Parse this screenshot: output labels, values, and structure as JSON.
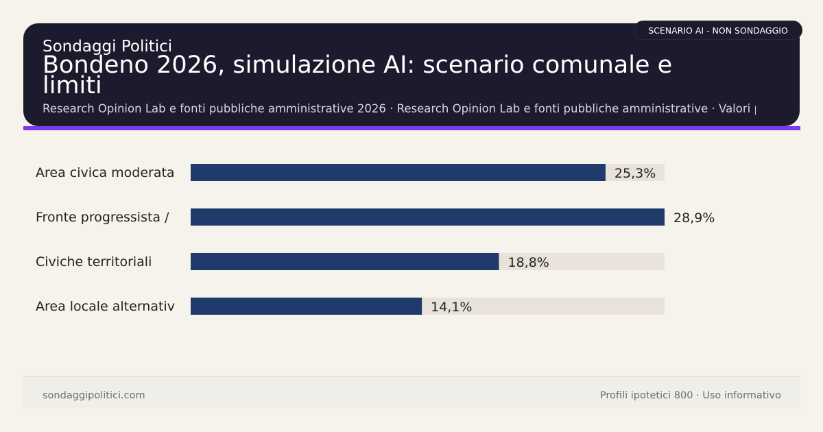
{
  "header": {
    "brand": "Sondaggi Politici",
    "title": "Bondeno 2026, simulazione AI: scenario comunale e limiti",
    "subtitle": "Research Opinion Lab e fonti pubbliche amministrative 2026 · Research Opinion Lab e fonti pubbliche amministrative · Valori pr",
    "badge": "SCENARIO AI - NON SONDAGGIO"
  },
  "colors": {
    "header_bg": "#1c1b2e",
    "accent": "#7c3aed",
    "bar": "#1f3a6b",
    "track": "#e8e2da",
    "background": "#f6f3ec"
  },
  "chart_data": {
    "type": "bar",
    "orientation": "horizontal",
    "categories": [
      "Area civica moderata",
      "Fronte progressista /",
      "Civiche territoriali",
      "Area locale alternativ"
    ],
    "values": [
      25.3,
      28.9,
      18.8,
      14.1
    ],
    "value_labels": [
      "25,3%",
      "28,9%",
      "18,8%",
      "14,1%"
    ],
    "xlim": [
      0,
      28.9
    ],
    "grid": false
  },
  "footer": {
    "site": "sondaggipolitici.com",
    "note": "Profili ipotetici 800 · Uso informativo"
  }
}
